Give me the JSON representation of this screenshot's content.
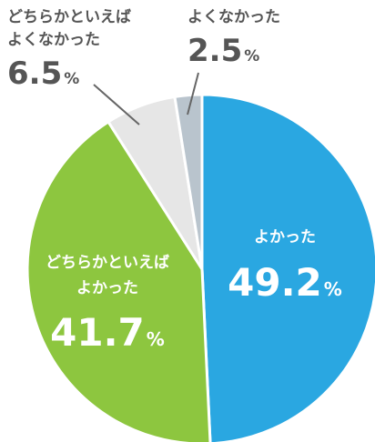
{
  "chart_data": {
    "type": "pie",
    "title": "",
    "slices": [
      {
        "label_lines": [
          "よかった"
        ],
        "value": 49.2,
        "display": "49.2",
        "unit": "%",
        "color": "#2aa7e1",
        "label_color": "#ffffff"
      },
      {
        "label_lines": [
          "どちらかといえば",
          "よかった"
        ],
        "value": 41.7,
        "display": "41.7",
        "unit": "%",
        "color": "#8dc63f",
        "label_color": "#ffffff"
      },
      {
        "label_lines": [
          "どちらかといえば",
          "よくなかった"
        ],
        "value": 6.5,
        "display": "6.5",
        "unit": "%",
        "color": "#e6e6e6",
        "label_color": "#555555"
      },
      {
        "label_lines": [
          "よくなかった"
        ],
        "value": 2.5,
        "display": "2.5",
        "unit": "%",
        "color": "#b9c4cd",
        "label_color": "#555555"
      }
    ],
    "start_angle": "12 o'clock",
    "direction": "clockwise",
    "legend": "none"
  }
}
